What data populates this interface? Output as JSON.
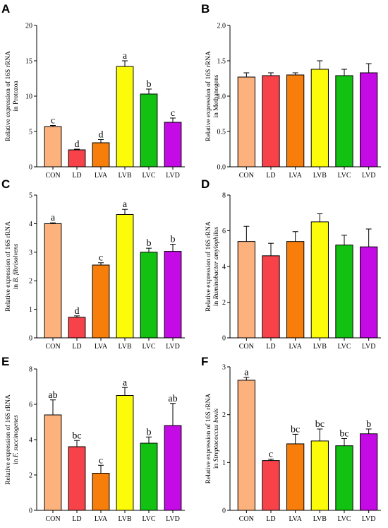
{
  "colors": {
    "CON": "#FDB27E",
    "LD": "#F7424A",
    "LVA": "#F77E0A",
    "LVB": "#FCFC0A",
    "LVC": "#12C212",
    "LVD": "#C40BE6",
    "axis": "#000000"
  },
  "chart_data": [
    {
      "panel": "A",
      "type": "bar",
      "ylabel_line1": "Relative expression of 16S rRNA",
      "ylabel_line2": "in Protozoa",
      "ylabel_italic": false,
      "categories": [
        "CON",
        "LD",
        "LVA",
        "LVB",
        "LVC",
        "LVD"
      ],
      "values": [
        5.7,
        2.4,
        3.4,
        14.2,
        10.3,
        6.3
      ],
      "errors": [
        0.15,
        0.1,
        0.45,
        0.8,
        0.7,
        0.6
      ],
      "letters": [
        "c",
        "d",
        "d",
        "a",
        "b",
        "c"
      ],
      "ylim": [
        0,
        20
      ],
      "yticks": [
        0,
        5,
        10,
        15,
        20
      ],
      "ytick_labels": [
        "0",
        "5",
        "10",
        "15",
        "20"
      ]
    },
    {
      "panel": "B",
      "type": "bar",
      "ylabel_line1": "Relative expression of 16S rRNA",
      "ylabel_line2": "in Methanogens",
      "ylabel_italic": false,
      "categories": [
        "CON",
        "LD",
        "LVA",
        "LVB",
        "LVC",
        "LVD"
      ],
      "values": [
        1.27,
        1.29,
        1.3,
        1.38,
        1.29,
        1.33
      ],
      "errors": [
        0.06,
        0.04,
        0.03,
        0.12,
        0.09,
        0.13
      ],
      "letters": [
        "",
        "",
        "",
        "",
        "",
        ""
      ],
      "ylim": [
        0,
        2
      ],
      "yticks": [
        0,
        0.5,
        1,
        1.5,
        2
      ],
      "ytick_labels": [
        "0.0",
        "0.5",
        "1.0",
        "1.5",
        "2.0"
      ]
    },
    {
      "panel": "C",
      "type": "bar",
      "ylabel_line1": "Relative expression of 16S rRNA",
      "ylabel_line2_prefix": "in ",
      "ylabel_line2": "B. fibrisolvens",
      "ylabel_italic": true,
      "categories": [
        "CON",
        "LD",
        "LVA",
        "LVB",
        "LVC",
        "LVD"
      ],
      "values": [
        4.0,
        0.72,
        2.55,
        4.32,
        3.0,
        3.03
      ],
      "errors": [
        0.03,
        0.05,
        0.08,
        0.18,
        0.14,
        0.25
      ],
      "letters": [
        "a",
        "d",
        "c",
        "a",
        "b",
        "b"
      ],
      "ylim": [
        0,
        5
      ],
      "yticks": [
        0,
        1,
        2,
        3,
        4,
        5
      ],
      "ytick_labels": [
        "0",
        "1",
        "2",
        "3",
        "4",
        "5"
      ]
    },
    {
      "panel": "D",
      "type": "bar",
      "ylabel_line1": "Relative expression of 16S rRNA",
      "ylabel_line2_prefix": "in ",
      "ylabel_line2": "Ruminobacter amylophilus",
      "ylabel_italic": true,
      "categories": [
        "CON",
        "LD",
        "LVA",
        "LVB",
        "LVC",
        "LVD"
      ],
      "values": [
        5.4,
        4.6,
        5.4,
        6.5,
        5.2,
        5.1
      ],
      "errors": [
        0.85,
        0.7,
        0.55,
        0.45,
        0.55,
        1.0
      ],
      "letters": [
        "",
        "",
        "",
        "",
        "",
        ""
      ],
      "ylim": [
        0,
        8
      ],
      "yticks": [
        0,
        2,
        4,
        6,
        8
      ],
      "ytick_labels": [
        "0",
        "2",
        "4",
        "6",
        "8"
      ]
    },
    {
      "panel": "E",
      "type": "bar",
      "ylabel_line1": "Relative expression of 16S rRNA",
      "ylabel_line2_prefix": "in ",
      "ylabel_line2": "F. succinogenes",
      "ylabel_italic": true,
      "categories": [
        "CON",
        "LD",
        "LVA",
        "LVB",
        "LVC",
        "LVD"
      ],
      "values": [
        5.4,
        3.6,
        2.1,
        6.5,
        3.8,
        4.8
      ],
      "errors": [
        0.85,
        0.35,
        0.45,
        0.45,
        0.35,
        1.25
      ],
      "letters": [
        "ab",
        "bc",
        "c",
        "a",
        "b",
        "ab"
      ],
      "ylim": [
        0,
        8
      ],
      "yticks": [
        0,
        2,
        4,
        6,
        8
      ],
      "ytick_labels": [
        "0",
        "2",
        "4",
        "6",
        "8"
      ]
    },
    {
      "panel": "F",
      "type": "bar",
      "ylabel_line1": "Relative expression of 16S rRNA",
      "ylabel_line2_prefix": "in ",
      "ylabel_line2": "Streptococcus bovis",
      "ylabel_italic": true,
      "categories": [
        "CON",
        "LD",
        "LVA",
        "LVB",
        "LVC",
        "LVD"
      ],
      "values": [
        2.72,
        1.04,
        1.39,
        1.45,
        1.35,
        1.6
      ],
      "errors": [
        0.06,
        0.03,
        0.2,
        0.25,
        0.15,
        0.1
      ],
      "letters": [
        "a",
        "c",
        "bc",
        "bc",
        "bc",
        "b"
      ],
      "ylim": [
        0,
        3
      ],
      "yticks": [
        0,
        1,
        2,
        3
      ],
      "ytick_labels": [
        "0",
        "1",
        "2",
        "3"
      ]
    }
  ]
}
